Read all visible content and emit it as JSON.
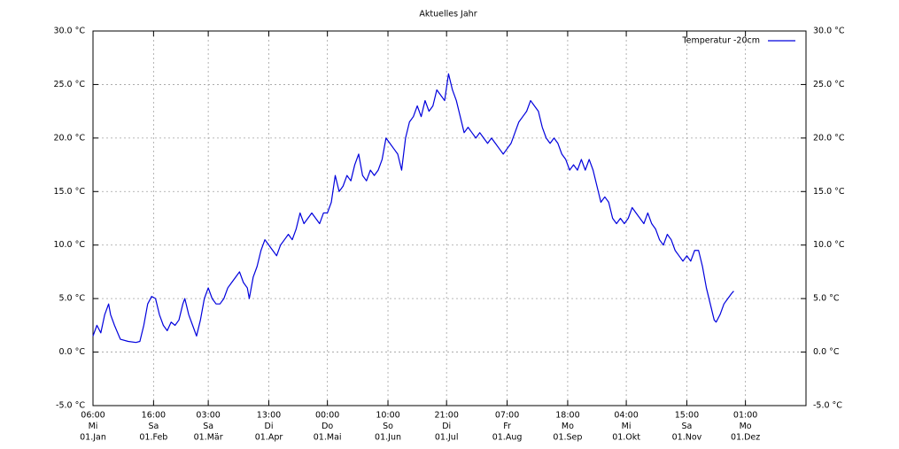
{
  "chart_data": {
    "type": "line",
    "title": "Aktuelles Jahr",
    "xlim": [
      0,
      365
    ],
    "xticks": [
      {
        "value": 0,
        "label": [
          "06:00",
          "Mi",
          "01.Jan"
        ]
      },
      {
        "value": 31,
        "label": [
          "16:00",
          "Sa",
          "01.Feb"
        ]
      },
      {
        "value": 59,
        "label": [
          "03:00",
          "Sa",
          "01.Mär"
        ]
      },
      {
        "value": 90,
        "label": [
          "13:00",
          "Di",
          "01.Apr"
        ]
      },
      {
        "value": 120,
        "label": [
          "00:00",
          "Do",
          "01.Mai"
        ]
      },
      {
        "value": 151,
        "label": [
          "10:00",
          "So",
          "01.Jun"
        ]
      },
      {
        "value": 181,
        "label": [
          "21:00",
          "Di",
          "01.Jul"
        ]
      },
      {
        "value": 212,
        "label": [
          "07:00",
          "Fr",
          "01.Aug"
        ]
      },
      {
        "value": 243,
        "label": [
          "18:00",
          "Mo",
          "01.Sep"
        ]
      },
      {
        "value": 273,
        "label": [
          "04:00",
          "Mi",
          "01.Okt"
        ]
      },
      {
        "value": 304,
        "label": [
          "15:00",
          "Sa",
          "01.Nov"
        ]
      },
      {
        "value": 334,
        "label": [
          "01:00",
          "Mo",
          "01.Dez"
        ]
      }
    ],
    "ylim": [
      -5,
      30
    ],
    "yticks": [
      {
        "value": -5,
        "label": "-5.0 °C"
      },
      {
        "value": 0,
        "label": "0.0 °C"
      },
      {
        "value": 5,
        "label": "5.0 °C"
      },
      {
        "value": 10,
        "label": "10.0 °C"
      },
      {
        "value": 15,
        "label": "15.0 °C"
      },
      {
        "value": 20,
        "label": "20.0 °C"
      },
      {
        "value": 25,
        "label": "25.0 °C"
      },
      {
        "value": 30,
        "label": "30.0 °C"
      }
    ],
    "y2lim": [
      -5,
      30
    ],
    "y2ticks": [
      {
        "value": -5,
        "label": "-5.0 °C"
      },
      {
        "value": 0,
        "label": "0.0 °C"
      },
      {
        "value": 5,
        "label": "5.0 °C"
      },
      {
        "value": 10,
        "label": "10.0 °C"
      },
      {
        "value": 15,
        "label": "15.0 °C"
      },
      {
        "value": 20,
        "label": "20.0 °C"
      },
      {
        "value": 25,
        "label": "25.0 °C"
      },
      {
        "value": 30,
        "label": "30.0 °C"
      }
    ],
    "grid": true,
    "legend": "top-right",
    "x": [
      0,
      2,
      4,
      6,
      8,
      9,
      11,
      14,
      18,
      22,
      24,
      26,
      28,
      30,
      32,
      34,
      36,
      38,
      40,
      42,
      44,
      46,
      47,
      49,
      51,
      53,
      55,
      57,
      59,
      61,
      63,
      65,
      67,
      69,
      71,
      73,
      75,
      77,
      79,
      80,
      82,
      84,
      86,
      88,
      90,
      92,
      94,
      96,
      98,
      100,
      102,
      104,
      106,
      108,
      110,
      112,
      114,
      116,
      118,
      120,
      122,
      124,
      126,
      128,
      130,
      132,
      134,
      136,
      138,
      140,
      142,
      144,
      146,
      148,
      150,
      152,
      154,
      156,
      158,
      160,
      162,
      164,
      166,
      168,
      170,
      172,
      174,
      176,
      178,
      180,
      182,
      184,
      186,
      188,
      190,
      192,
      194,
      196,
      198,
      200,
      202,
      204,
      206,
      208,
      210,
      212,
      214,
      216,
      218,
      220,
      222,
      224,
      226,
      228,
      230,
      232,
      234,
      236,
      238,
      240,
      242,
      244,
      246,
      248,
      250,
      252,
      254,
      256,
      258,
      260,
      262,
      264,
      266,
      268,
      270,
      272,
      274,
      276,
      278,
      280,
      282,
      284,
      286,
      288,
      290,
      292,
      294,
      296,
      298,
      300,
      302,
      304,
      306,
      308,
      310,
      312,
      314,
      316,
      318,
      319,
      321,
      323,
      325,
      327,
      328
    ],
    "series": [
      {
        "name": "Temperatur -20cm",
        "color": "#0000dd",
        "values": [
          1.5,
          2.5,
          1.8,
          3.5,
          4.5,
          3.5,
          2.5,
          1.2,
          1.0,
          0.9,
          1.0,
          2.5,
          4.5,
          5.2,
          5.0,
          3.5,
          2.5,
          2.0,
          2.8,
          2.5,
          3.0,
          4.5,
          5.0,
          3.5,
          2.5,
          1.5,
          3.0,
          5.0,
          6.0,
          5.0,
          4.5,
          4.5,
          5.0,
          6.0,
          6.5,
          7.0,
          7.5,
          6.5,
          6.0,
          5.0,
          7.0,
          8.0,
          9.5,
          10.5,
          10.0,
          9.5,
          9.0,
          10.0,
          10.5,
          11.0,
          10.5,
          11.5,
          13.0,
          12.0,
          12.5,
          13.0,
          12.5,
          12.0,
          13.0,
          13.0,
          14.0,
          16.5,
          15.0,
          15.5,
          16.5,
          16.0,
          17.5,
          18.5,
          16.5,
          16.0,
          17.0,
          16.5,
          17.0,
          18.0,
          20.0,
          19.5,
          19.0,
          18.5,
          17.0,
          20.0,
          21.5,
          22.0,
          23.0,
          22.0,
          23.5,
          22.5,
          23.0,
          24.5,
          24.0,
          23.5,
          26.0,
          24.5,
          23.5,
          22.0,
          20.5,
          21.0,
          20.5,
          20.0,
          20.5,
          20.0,
          19.5,
          20.0,
          19.5,
          19.0,
          18.5,
          19.0,
          19.5,
          20.5,
          21.5,
          22.0,
          22.5,
          23.5,
          23.0,
          22.5,
          21.0,
          20.0,
          19.5,
          20.0,
          19.5,
          18.5,
          18.0,
          17.0,
          17.5,
          17.0,
          18.0,
          17.0,
          18.0,
          17.0,
          15.5,
          14.0,
          14.5,
          14.0,
          12.5,
          12.0,
          12.5,
          12.0,
          12.5,
          13.5,
          13.0,
          12.5,
          12.0,
          13.0,
          12.0,
          11.5,
          10.5,
          10.0,
          11.0,
          10.5,
          9.5,
          9.0,
          8.5,
          9.0,
          8.5,
          9.5,
          9.5,
          8.0,
          6.0,
          4.5,
          3.0,
          2.8,
          3.5,
          4.5,
          5.0,
          5.5,
          5.7
        ]
      }
    ]
  }
}
